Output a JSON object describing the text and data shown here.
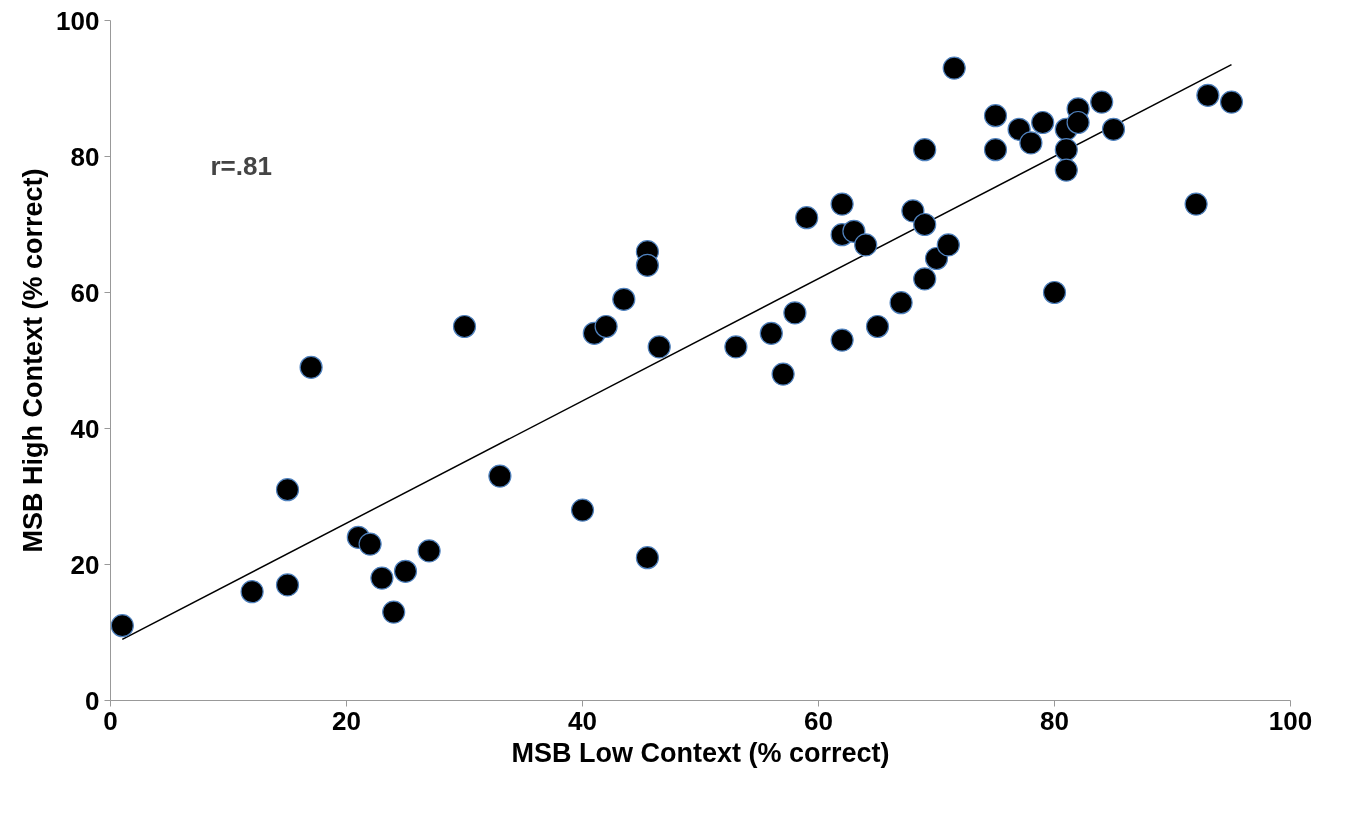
{
  "chart_data": {
    "type": "scatter",
    "xlabel": "MSB Low Context (% correct)",
    "ylabel": "MSB High Context (% correct)",
    "xlim": [
      0,
      100
    ],
    "ylim": [
      0,
      100
    ],
    "xticks": [
      0,
      20,
      40,
      60,
      80,
      100
    ],
    "yticks": [
      0,
      20,
      40,
      60,
      80,
      100
    ],
    "grid": false,
    "annotations": [
      "r=.81"
    ],
    "series": [
      {
        "color": "#000000",
        "marker": "circle",
        "x": [
          1,
          12,
          15,
          15,
          17,
          21,
          22,
          23,
          24,
          25,
          27,
          30,
          33,
          40,
          41,
          42,
          43.5,
          45.5,
          45.5,
          45.5,
          46.5,
          53,
          56,
          57,
          58,
          59,
          62,
          62,
          62,
          63,
          64,
          65,
          67,
          68,
          69,
          69,
          69,
          70,
          71,
          71.5,
          75,
          75,
          77,
          78,
          79,
          80,
          81,
          81,
          81,
          82,
          82,
          84,
          85,
          92,
          93,
          95
        ],
        "values": [
          11,
          16,
          31,
          17,
          49,
          24,
          23,
          18,
          13,
          19,
          22,
          55,
          33,
          28,
          54,
          55,
          59,
          66,
          64,
          21,
          52,
          52,
          54,
          48,
          57,
          71,
          68.5,
          73,
          53,
          69,
          67,
          55,
          58.5,
          72,
          70,
          81,
          62,
          65,
          67,
          93,
          86,
          81,
          84,
          82,
          85,
          60,
          84,
          81,
          78,
          87,
          85,
          88,
          84,
          73,
          89,
          88
        ]
      },
      {
        "type": "line",
        "color": "#000000",
        "line_style": "solid",
        "marker": "none",
        "x": [
          1,
          95
        ],
        "values": [
          9,
          93.5
        ]
      }
    ]
  }
}
